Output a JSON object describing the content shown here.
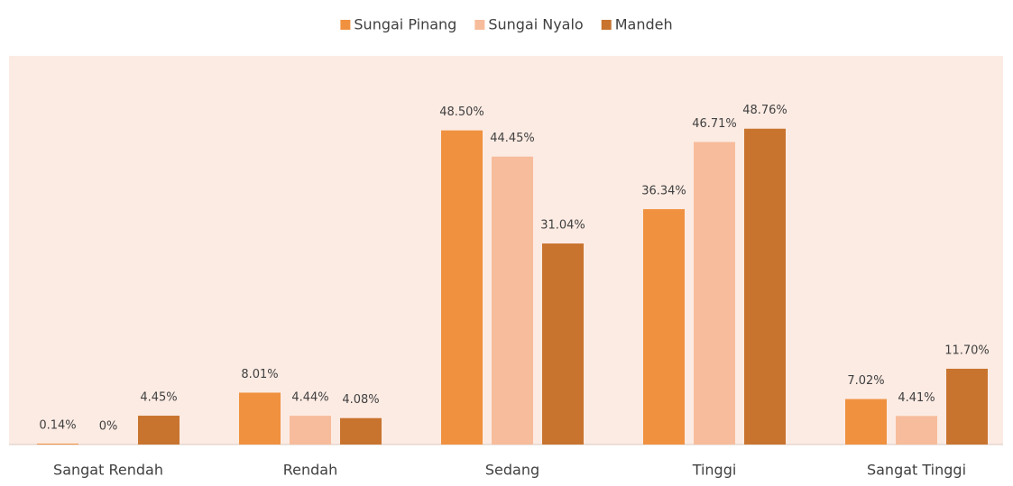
{
  "chart_data": {
    "type": "bar",
    "categories": [
      "Sangat Rendah",
      "Rendah",
      "Sedang",
      "Tinggi",
      "Sangat Tinggi"
    ],
    "series": [
      {
        "name": "Sungai Pinang",
        "color": "#f0913f",
        "values": [
          0.14,
          8.01,
          48.5,
          36.34,
          7.02
        ],
        "value_labels": [
          "0.14%",
          "8.01%",
          "48.50%",
          "36.34%",
          "7.02%"
        ]
      },
      {
        "name": "Sungai Nyalo",
        "color": "#f7bc9b",
        "values": [
          0,
          4.44,
          44.45,
          46.71,
          4.41
        ],
        "value_labels": [
          "0%",
          "4.44%",
          "44.45%",
          "46.71%",
          "4.41%"
        ]
      },
      {
        "name": "Mandeh",
        "color": "#c8742f",
        "values": [
          4.45,
          4.08,
          31.04,
          48.76,
          11.7
        ],
        "value_labels": [
          "4.45%",
          "4.08%",
          "31.04%",
          "48.76%",
          "11.70%"
        ]
      }
    ],
    "ylim": [
      0,
      60
    ],
    "legend": "top"
  }
}
